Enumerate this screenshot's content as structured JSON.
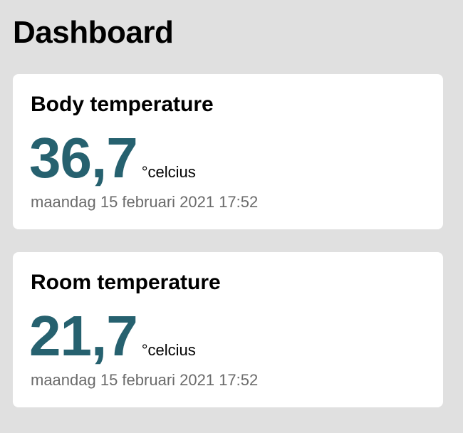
{
  "page": {
    "title": "Dashboard"
  },
  "colors": {
    "background": "#e0e0e0",
    "card": "#ffffff",
    "value_accent": "#26616f",
    "timestamp_text": "#6b6b6b"
  },
  "cards": [
    {
      "title": "Body temperature",
      "value": "36,7",
      "unit": "°celcius",
      "timestamp": "maandag 15 februari 2021 17:52"
    },
    {
      "title": "Room temperature",
      "value": "21,7",
      "unit": "°celcius",
      "timestamp": "maandag 15 februari 2021 17:52"
    }
  ]
}
